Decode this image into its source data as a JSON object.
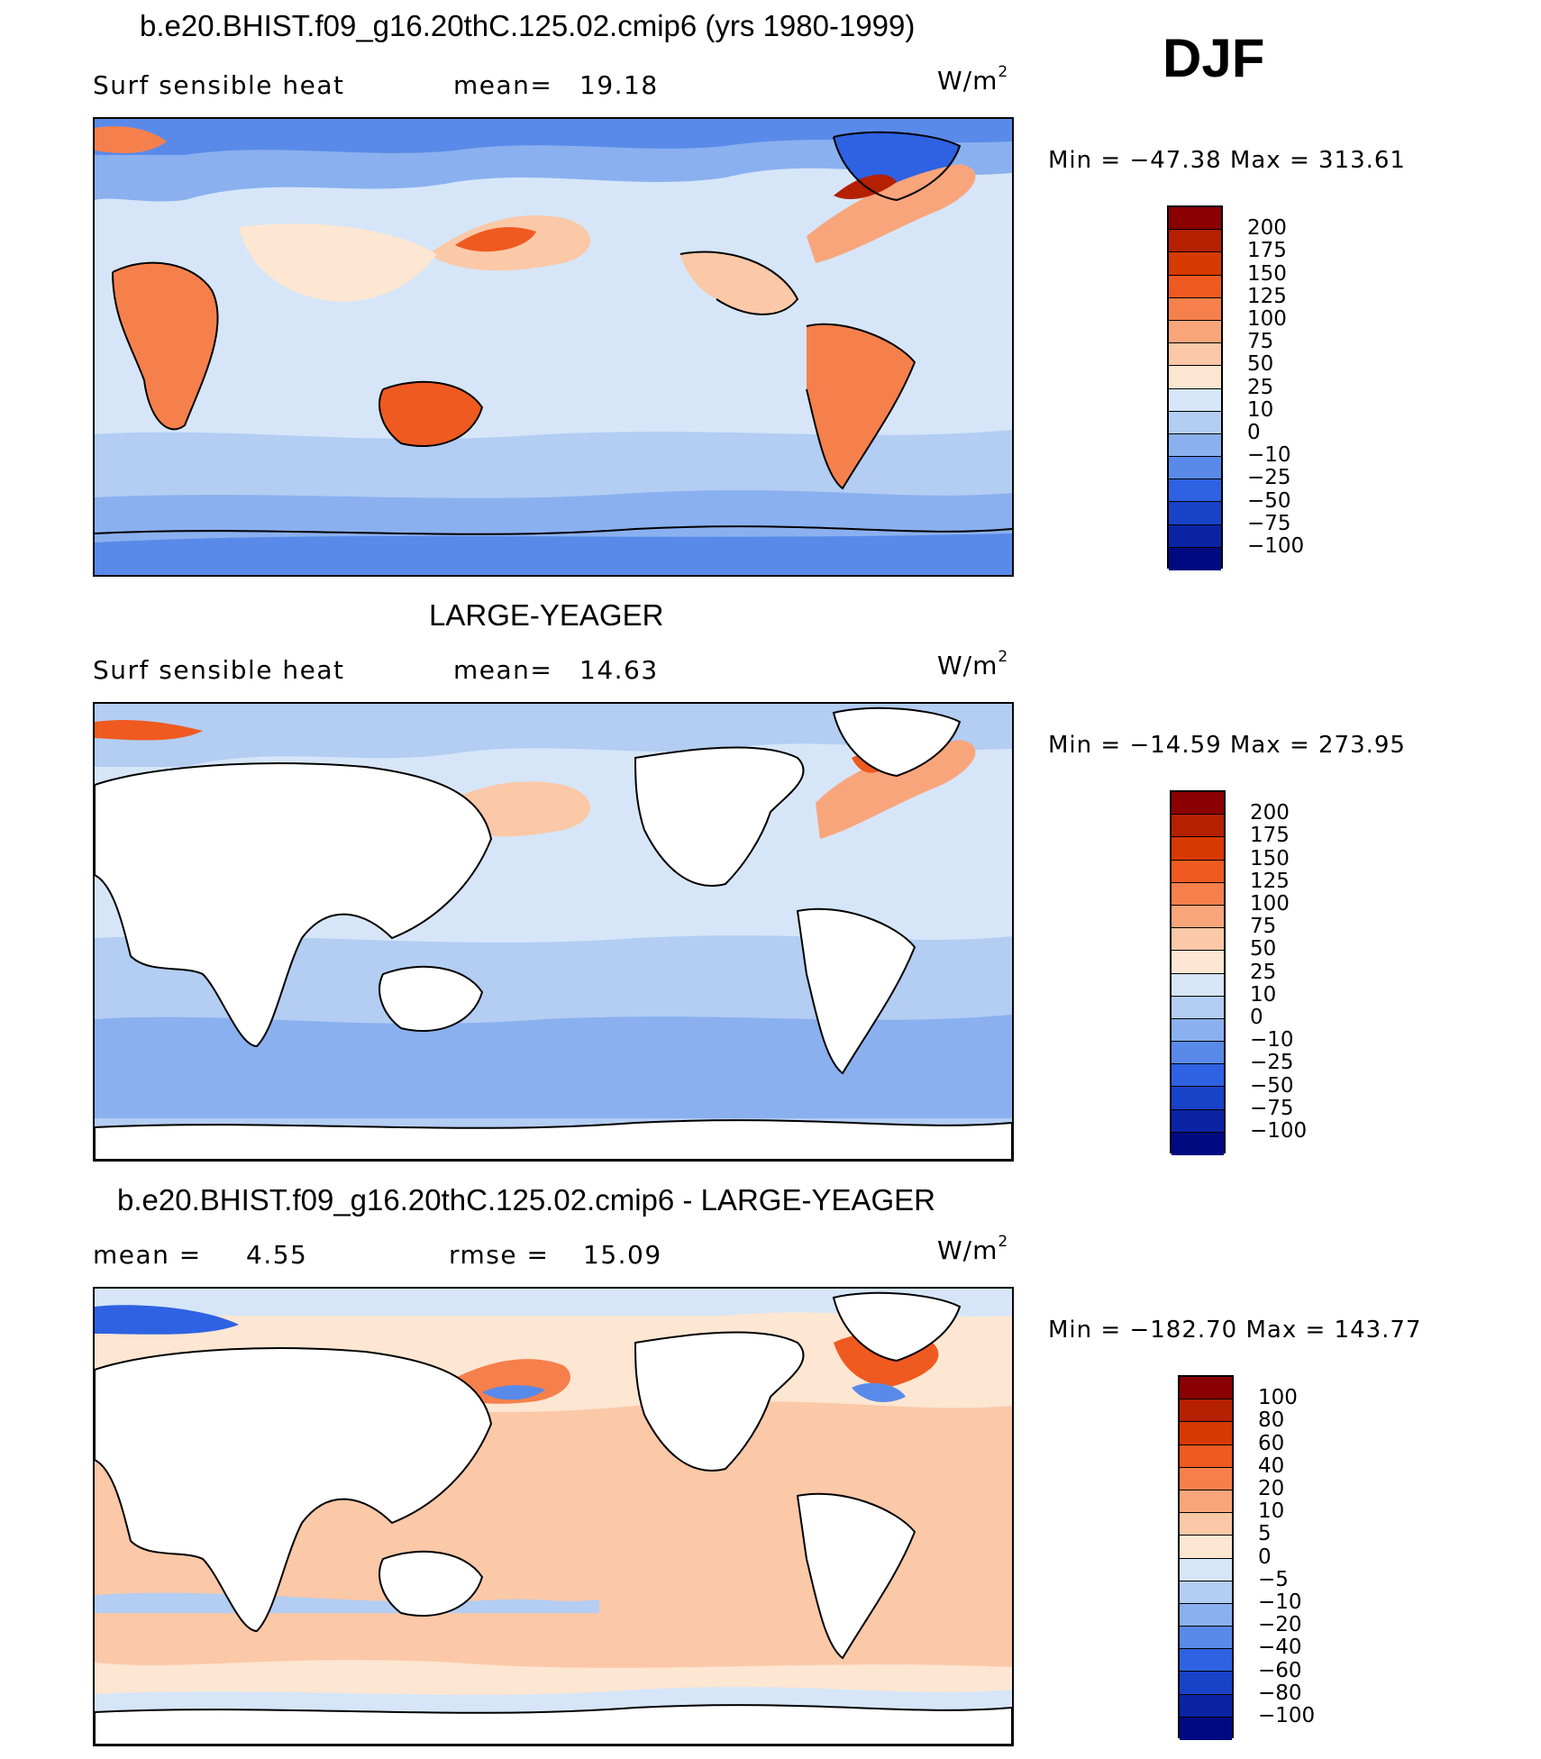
{
  "season": "DJF",
  "units": "W/m",
  "units_exp": "2",
  "panels": [
    {
      "title": "b.e20.BHIST.f09_g16.20thC.125.02.cmip6 (yrs 1980-1999)",
      "variable": "Surf  sensible  heat",
      "stat_label": "mean=",
      "stat_value": "19.18",
      "minmax": "Min  =  −47.38  Max  =  313.61",
      "levels": [
        "200",
        "175",
        "150",
        "125",
        "100",
        "75",
        "50",
        "25",
        "10",
        "0",
        "−10",
        "−25",
        "−50",
        "−75",
        "−100"
      ],
      "colors": [
        "#8b0000",
        "#b52000",
        "#d63a00",
        "#ef5a20",
        "#f6804c",
        "#f9a57c",
        "#fbc8a8",
        "#fde6d2",
        "#d6e6f8",
        "#b3cdf3",
        "#8ab0ef",
        "#5a8ae9",
        "#2e62e2",
        "#1842c8",
        "#0a24a4",
        "#000a80"
      ]
    },
    {
      "title": "LARGE-YEAGER",
      "variable": "Surf  sensible  heat",
      "stat_label": "mean=",
      "stat_value": "14.63",
      "minmax": "Min  =  −14.59  Max  =  273.95",
      "levels": [
        "200",
        "175",
        "150",
        "125",
        "100",
        "75",
        "50",
        "25",
        "10",
        "0",
        "−10",
        "−25",
        "−50",
        "−75",
        "−100"
      ],
      "colors": [
        "#8b0000",
        "#b52000",
        "#d63a00",
        "#ef5a20",
        "#f6804c",
        "#f9a57c",
        "#fbc8a8",
        "#fde6d2",
        "#d6e6f8",
        "#b3cdf3",
        "#8ab0ef",
        "#5a8ae9",
        "#2e62e2",
        "#1842c8",
        "#0a24a4",
        "#000a80"
      ]
    },
    {
      "title": "b.e20.BHIST.f09_g16.20thC.125.02.cmip6 - LARGE-YEAGER",
      "stat_label": "mean =",
      "stat_value": "4.55",
      "stat2_label": "rmse =",
      "stat2_value": "15.09",
      "minmax": "Min  =  −182.70  Max  =  143.77",
      "levels": [
        "100",
        "80",
        "60",
        "40",
        "20",
        "10",
        "5",
        "0",
        "−5",
        "−10",
        "−20",
        "−40",
        "−60",
        "−80",
        "−100"
      ],
      "colors": [
        "#8b0000",
        "#b52000",
        "#d63a00",
        "#ef5a20",
        "#f6804c",
        "#f9a57c",
        "#fbc8a8",
        "#fde6d2",
        "#d6e6f8",
        "#b3cdf3",
        "#8ab0ef",
        "#5a8ae9",
        "#2e62e2",
        "#1842c8",
        "#0a24a4",
        "#000a80"
      ]
    }
  ]
}
